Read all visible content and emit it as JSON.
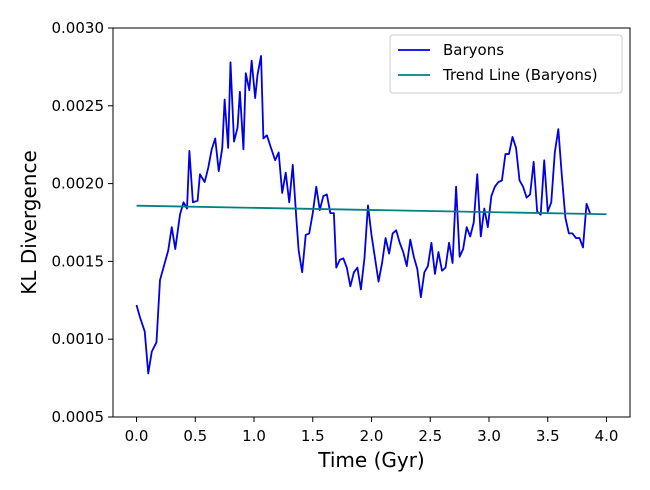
{
  "chart_data": {
    "type": "line",
    "xlabel": "Time (Gyr)",
    "ylabel": "KL Divergence",
    "xlim": [
      -0.2,
      4.2
    ],
    "ylim": [
      0.0005,
      0.003
    ],
    "xticks": [
      0.0,
      0.5,
      1.0,
      1.5,
      2.0,
      2.5,
      3.0,
      3.5,
      4.0
    ],
    "xtick_labels": [
      "0.0",
      "0.5",
      "1.0",
      "1.5",
      "2.0",
      "2.5",
      "3.0",
      "3.5",
      "4.0"
    ],
    "yticks": [
      0.0005,
      0.001,
      0.0015,
      0.002,
      0.0025,
      0.003
    ],
    "ytick_labels": [
      "0.0005",
      "0.0010",
      "0.0015",
      "0.0020",
      "0.0025",
      "0.0030"
    ],
    "grid": false,
    "legend_position": "top-right",
    "series": [
      {
        "name": "Baryons",
        "color": "#0000e6",
        "points": [
          [
            0.0,
            0.00122
          ],
          [
            0.03,
            0.00114
          ],
          [
            0.07,
            0.00105
          ],
          [
            0.1,
            0.00078
          ],
          [
            0.13,
            0.00092
          ],
          [
            0.17,
            0.00098
          ],
          [
            0.2,
            0.00138
          ],
          [
            0.27,
            0.00157
          ],
          [
            0.3,
            0.00172
          ],
          [
            0.33,
            0.00158
          ],
          [
            0.37,
            0.0018
          ],
          [
            0.4,
            0.00188
          ],
          [
            0.43,
            0.00184
          ],
          [
            0.45,
            0.00221
          ],
          [
            0.48,
            0.00188
          ],
          [
            0.52,
            0.00189
          ],
          [
            0.54,
            0.00206
          ],
          [
            0.58,
            0.00201
          ],
          [
            0.61,
            0.0021
          ],
          [
            0.64,
            0.00222
          ],
          [
            0.67,
            0.00229
          ],
          [
            0.7,
            0.00208
          ],
          [
            0.73,
            0.00223
          ],
          [
            0.75,
            0.00254
          ],
          [
            0.78,
            0.00223
          ],
          [
            0.8,
            0.00278
          ],
          [
            0.83,
            0.00227
          ],
          [
            0.86,
            0.00236
          ],
          [
            0.88,
            0.00259
          ],
          [
            0.91,
            0.00222
          ],
          [
            0.93,
            0.00271
          ],
          [
            0.96,
            0.0026
          ],
          [
            0.98,
            0.00279
          ],
          [
            1.01,
            0.00255
          ],
          [
            1.03,
            0.0027
          ],
          [
            1.06,
            0.00282
          ],
          [
            1.08,
            0.00229
          ],
          [
            1.11,
            0.00231
          ],
          [
            1.14,
            0.00224
          ],
          [
            1.18,
            0.00215
          ],
          [
            1.21,
            0.0022
          ],
          [
            1.24,
            0.00194
          ],
          [
            1.27,
            0.00207
          ],
          [
            1.3,
            0.00188
          ],
          [
            1.33,
            0.00212
          ],
          [
            1.36,
            0.00178
          ],
          [
            1.38,
            0.00157
          ],
          [
            1.41,
            0.00143
          ],
          [
            1.44,
            0.00167
          ],
          [
            1.47,
            0.00168
          ],
          [
            1.5,
            0.00181
          ],
          [
            1.53,
            0.00198
          ],
          [
            1.56,
            0.00183
          ],
          [
            1.59,
            0.00192
          ],
          [
            1.62,
            0.00193
          ],
          [
            1.65,
            0.00181
          ],
          [
            1.68,
            0.00181
          ],
          [
            1.7,
            0.00146
          ],
          [
            1.73,
            0.00151
          ],
          [
            1.76,
            0.00152
          ],
          [
            1.79,
            0.00146
          ],
          [
            1.82,
            0.00134
          ],
          [
            1.85,
            0.00143
          ],
          [
            1.88,
            0.00146
          ],
          [
            1.91,
            0.00132
          ],
          [
            1.94,
            0.00152
          ],
          [
            1.97,
            0.00186
          ],
          [
            2.0,
            0.00167
          ],
          [
            2.03,
            0.00152
          ],
          [
            2.06,
            0.00137
          ],
          [
            2.09,
            0.00149
          ],
          [
            2.12,
            0.00165
          ],
          [
            2.15,
            0.00155
          ],
          [
            2.18,
            0.00168
          ],
          [
            2.21,
            0.0017
          ],
          [
            2.24,
            0.00162
          ],
          [
            2.27,
            0.00156
          ],
          [
            2.3,
            0.00147
          ],
          [
            2.33,
            0.00164
          ],
          [
            2.36,
            0.00153
          ],
          [
            2.39,
            0.00145
          ],
          [
            2.42,
            0.00127
          ],
          [
            2.45,
            0.00143
          ],
          [
            2.48,
            0.00147
          ],
          [
            2.51,
            0.00162
          ],
          [
            2.54,
            0.00142
          ],
          [
            2.57,
            0.00156
          ],
          [
            2.6,
            0.00144
          ],
          [
            2.63,
            0.00146
          ],
          [
            2.66,
            0.00162
          ],
          [
            2.69,
            0.00149
          ],
          [
            2.72,
            0.00198
          ],
          [
            2.75,
            0.00153
          ],
          [
            2.78,
            0.00158
          ],
          [
            2.81,
            0.00172
          ],
          [
            2.84,
            0.00166
          ],
          [
            2.87,
            0.00175
          ],
          [
            2.9,
            0.00206
          ],
          [
            2.93,
            0.00166
          ],
          [
            2.96,
            0.00184
          ],
          [
            2.99,
            0.00172
          ],
          [
            3.02,
            0.00192
          ],
          [
            3.05,
            0.00198
          ],
          [
            3.08,
            0.00201
          ],
          [
            3.11,
            0.00202
          ],
          [
            3.14,
            0.00219
          ],
          [
            3.17,
            0.00219
          ],
          [
            3.2,
            0.0023
          ],
          [
            3.23,
            0.00223
          ],
          [
            3.26,
            0.00202
          ],
          [
            3.29,
            0.00198
          ],
          [
            3.32,
            0.00191
          ],
          [
            3.35,
            0.00193
          ],
          [
            3.38,
            0.00214
          ],
          [
            3.41,
            0.00182
          ],
          [
            3.44,
            0.0018
          ],
          [
            3.47,
            0.00215
          ],
          [
            3.5,
            0.00182
          ],
          [
            3.53,
            0.00188
          ],
          [
            3.56,
            0.0022
          ],
          [
            3.59,
            0.00235
          ],
          [
            3.62,
            0.00205
          ],
          [
            3.65,
            0.00178
          ],
          [
            3.68,
            0.00168
          ],
          [
            3.71,
            0.00168
          ],
          [
            3.74,
            0.00165
          ],
          [
            3.77,
            0.00165
          ],
          [
            3.8,
            0.00159
          ],
          [
            3.83,
            0.00187
          ],
          [
            3.86,
            0.00181
          ]
        ]
      },
      {
        "name": "Trend Line (Baryons)",
        "color": "#008080",
        "points": [
          [
            0.0,
            0.001858
          ],
          [
            4.0,
            0.001803
          ]
        ]
      }
    ]
  }
}
